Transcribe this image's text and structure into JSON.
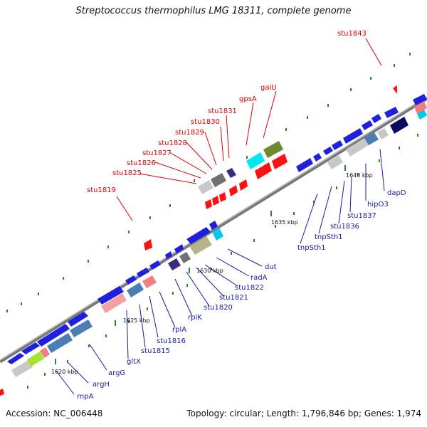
{
  "header": {
    "title": "Streptococcus thermophilus LMG 18311, complete genome"
  },
  "footer": {
    "accession": "Accession: NC_006448",
    "stats": "Topology: circular; Length: 1,796,846 bp; Genes: 1,974"
  },
  "ticks": [
    {
      "label": "1620 kbp"
    },
    {
      "label": "1625 kbp"
    },
    {
      "label": "1630 kbp"
    },
    {
      "label": "1635 kbp"
    },
    {
      "label": "1640 kbp"
    }
  ],
  "labels_top": [
    {
      "text": "stu1843"
    },
    {
      "text": "galU"
    },
    {
      "text": "gpsA"
    },
    {
      "text": "stu1831"
    },
    {
      "text": "stu1830"
    },
    {
      "text": "stu1829"
    },
    {
      "text": "stu1828"
    },
    {
      "text": "stu1827"
    },
    {
      "text": "stu1826"
    },
    {
      "text": "stu1825"
    },
    {
      "text": "stu1819"
    }
  ],
  "labels_bottom": [
    {
      "text": "dapD"
    },
    {
      "text": "hipO3"
    },
    {
      "text": "stu1837"
    },
    {
      "text": "stu1836"
    },
    {
      "text": "tnpSth1"
    },
    {
      "text": "tnpSth1"
    },
    {
      "text": "dut"
    },
    {
      "text": "radA"
    },
    {
      "text": "stu1822"
    },
    {
      "text": "stu1821"
    },
    {
      "text": "stu1820"
    },
    {
      "text": "rplK"
    },
    {
      "text": "rplA"
    },
    {
      "text": "stu1816"
    },
    {
      "text": "stu1815"
    },
    {
      "text": "gltX"
    },
    {
      "text": "argG"
    },
    {
      "text": "argH"
    },
    {
      "text": "rnpA"
    }
  ],
  "colors": {
    "backbone": "#888888",
    "forward_gene": "#1f1fe0",
    "reverse_gene": "#ff1111",
    "tick": "#228822",
    "label_top": "#dd0000",
    "label_bottom": "#1a1aa0"
  }
}
